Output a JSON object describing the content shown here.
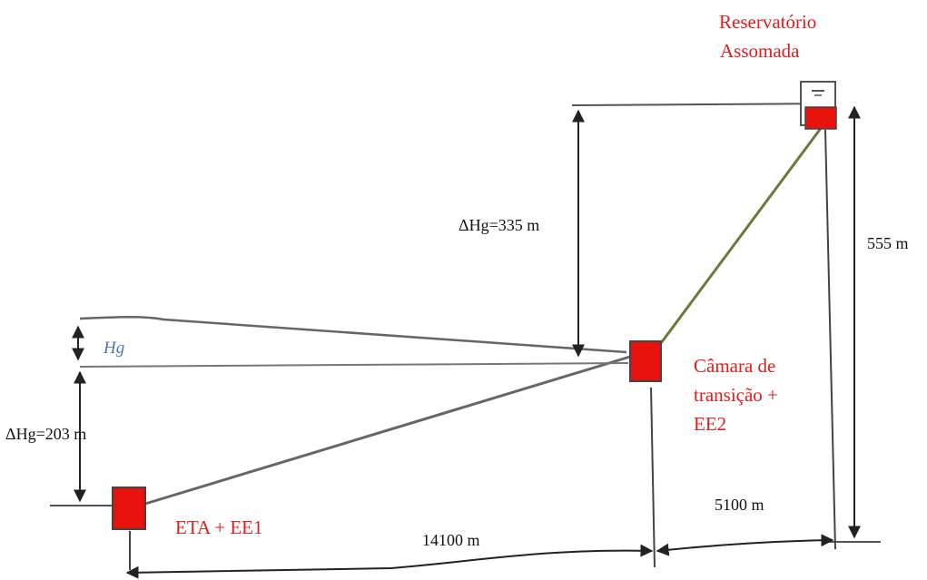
{
  "labels": {
    "reservoir_line1": "Reservatório",
    "reservoir_line2": "Assomada",
    "chamber_line1": "Câmara de",
    "chamber_line2": "transição +",
    "chamber_line3": "EE2",
    "eta": "ETA + EE1",
    "hg": "Hg",
    "dhg_upper": "ΔHg=335  m",
    "dhg_lower": "ΔHg=203  m",
    "height_total": "555  m",
    "dist_upper": "5100  m",
    "dist_lower": "14100  m"
  },
  "colors": {
    "station": "#e8120d",
    "label": "#e31b1b",
    "line": "#555555",
    "hg": "#4a78b8"
  }
}
